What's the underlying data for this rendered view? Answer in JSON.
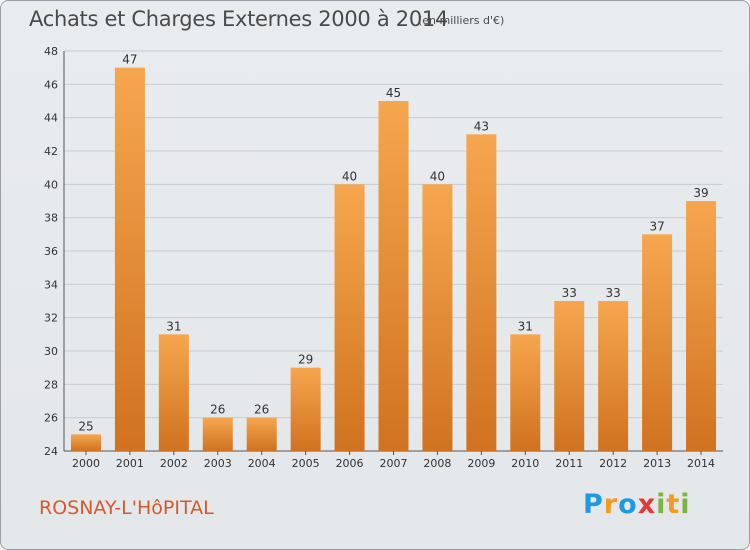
{
  "title": "Achats et Charges Externes 2000 à 2014",
  "subtitle": "(en milliers d'€)",
  "footer_label": "ROSNAY-L'HôPITAL",
  "logo": {
    "letters": [
      "P",
      "r",
      "o",
      "x",
      "i",
      "t",
      "i"
    ],
    "colors": [
      "#1e9be0",
      "#f39a1f",
      "#1e9be0",
      "#e53935",
      "#7cb342",
      "#f39a1f",
      "#7cb342"
    ]
  },
  "colors": {
    "bar_light": "#f6a64e",
    "bar_dark": "#d0721f",
    "grid": "#c8ccd0",
    "title": "#4a4a4a",
    "town": "#d45a2a"
  },
  "chart_data": {
    "type": "bar",
    "title": "Achats et Charges Externes 2000 à 2014",
    "subtitle": "(en milliers d'€)",
    "categories": [
      "2000",
      "2001",
      "2002",
      "2003",
      "2004",
      "2005",
      "2006",
      "2007",
      "2008",
      "2009",
      "2010",
      "2011",
      "2012",
      "2013",
      "2014"
    ],
    "values": [
      25,
      47,
      31,
      26,
      26,
      29,
      40,
      45,
      40,
      43,
      31,
      33,
      33,
      37,
      39
    ],
    "ylim": [
      24,
      48
    ],
    "yticks": [
      24,
      26,
      28,
      30,
      32,
      34,
      36,
      38,
      40,
      42,
      44,
      46,
      48
    ],
    "grid": true,
    "data_labels": true
  }
}
